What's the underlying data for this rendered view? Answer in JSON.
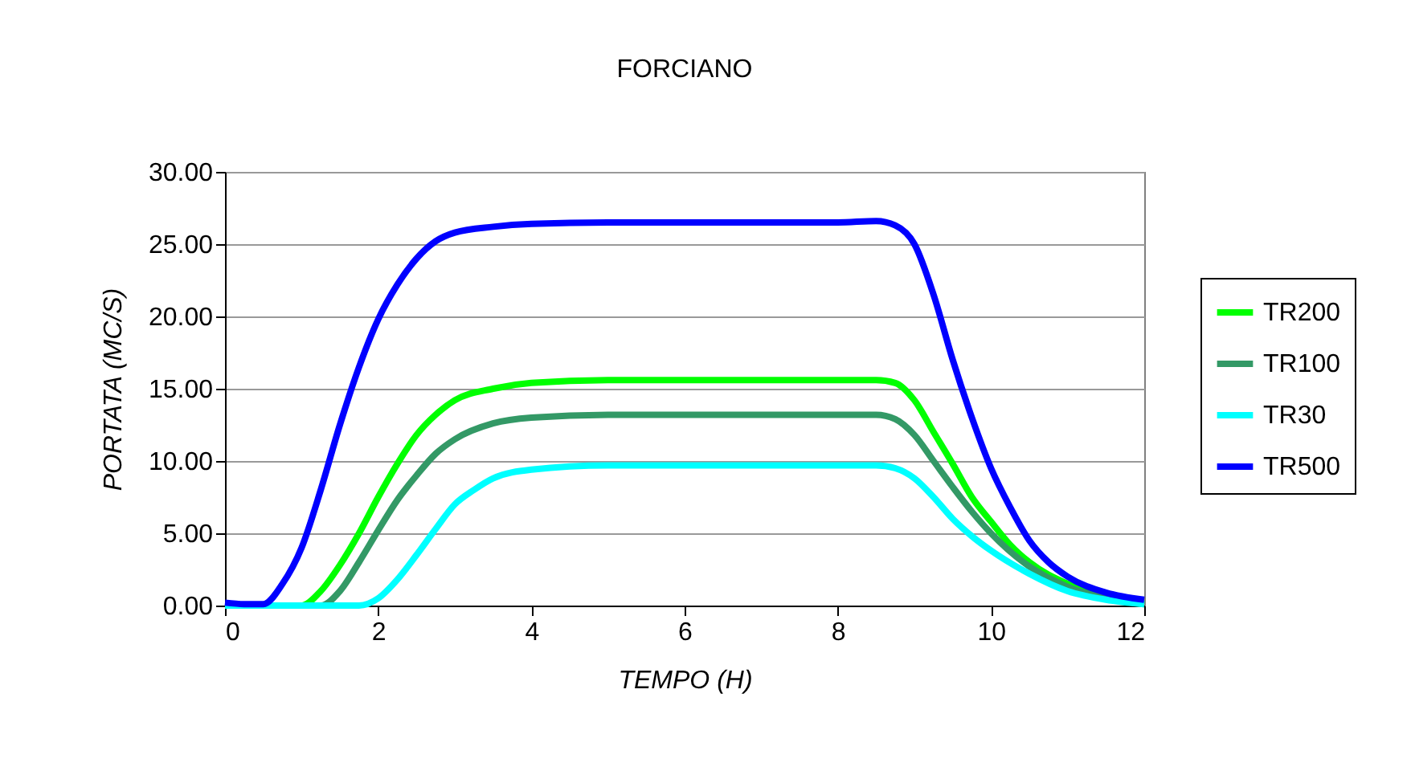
{
  "chart_data": {
    "type": "line",
    "title": "FORCIANO",
    "xlabel": "TEMPO (H)",
    "ylabel": "PORTATA (MC/S)",
    "xlim": [
      0,
      12
    ],
    "xticks": [
      0,
      2,
      4,
      6,
      8,
      10,
      12
    ],
    "ylim": [
      0,
      30
    ],
    "yticks": [
      {
        "value": 0,
        "label": "0.00"
      },
      {
        "value": 5,
        "label": "5.00"
      },
      {
        "value": 10,
        "label": "10.00"
      },
      {
        "value": 15,
        "label": "15.00"
      },
      {
        "value": 20,
        "label": "20.00"
      },
      {
        "value": 25,
        "label": "25.00"
      },
      {
        "value": 30,
        "label": "30.00"
      }
    ],
    "grid": "y",
    "legend": "right",
    "marker": "none",
    "line_style": "solid",
    "series": [
      {
        "name": "TR200",
        "color": "#00ff00",
        "x": [
          0,
          1,
          1.25,
          1.5,
          1.75,
          2,
          2.25,
          2.5,
          2.75,
          3,
          3.5,
          4,
          5,
          6,
          8,
          8.5,
          8.75,
          9,
          9.25,
          9.5,
          9.75,
          10,
          10.25,
          10.5,
          11,
          11.5,
          12
        ],
        "values": [
          0,
          0,
          1,
          2.8,
          5,
          7.5,
          9.8,
          11.8,
          13.2,
          14.2,
          15,
          15.4,
          15.6,
          15.6,
          15.6,
          15.6,
          15.4,
          14.2,
          12,
          9.8,
          7.5,
          5.8,
          4.2,
          3,
          1.5,
          0.6,
          0.1
        ]
      },
      {
        "name": "TR100",
        "color": "#339966",
        "x": [
          0,
          1.25,
          1.5,
          1.75,
          2,
          2.25,
          2.5,
          2.75,
          3,
          3.5,
          4,
          5,
          8,
          8.5,
          8.75,
          9,
          9.25,
          9.5,
          9.75,
          10,
          10.5,
          11,
          11.5,
          12
        ],
        "values": [
          0,
          0,
          1,
          3,
          5.2,
          7.3,
          9,
          10.5,
          11.5,
          12.6,
          13,
          13.2,
          13.2,
          13.2,
          12.9,
          11.8,
          10,
          8.2,
          6.5,
          5,
          2.7,
          1.3,
          0.5,
          0.1
        ]
      },
      {
        "name": "TR30",
        "color": "#00ffff",
        "x": [
          0,
          1.75,
          2,
          2.25,
          2.5,
          2.75,
          3,
          3.25,
          3.5,
          4,
          5,
          8,
          8.5,
          8.75,
          9,
          9.25,
          9.5,
          9.75,
          10,
          10.5,
          11,
          11.5,
          12
        ],
        "values": [
          0,
          0,
          0.5,
          1.8,
          3.5,
          5.3,
          7,
          8,
          8.8,
          9.4,
          9.7,
          9.7,
          9.7,
          9.5,
          8.8,
          7.5,
          6,
          4.8,
          3.8,
          2.2,
          1,
          0.4,
          0.1
        ]
      },
      {
        "name": "TR500",
        "color": "#0000ff",
        "x": [
          0,
          0.25,
          0.5,
          0.75,
          1,
          1.25,
          1.5,
          1.75,
          2,
          2.25,
          2.5,
          2.75,
          3,
          3.5,
          4,
          5,
          6,
          7,
          8,
          8.5,
          8.75,
          9,
          9.25,
          9.5,
          9.75,
          10,
          10.25,
          10.5,
          10.75,
          11,
          11.5,
          12
        ],
        "values": [
          0.2,
          0.1,
          0.1,
          1.5,
          4,
          8,
          12.5,
          16.5,
          19.8,
          22.2,
          24,
          25.2,
          25.8,
          26.2,
          26.4,
          26.5,
          26.5,
          26.5,
          26.5,
          26.6,
          26.3,
          25,
          21.5,
          17,
          13,
          9.5,
          6.8,
          4.5,
          3,
          2,
          0.9,
          0.4
        ]
      }
    ]
  }
}
